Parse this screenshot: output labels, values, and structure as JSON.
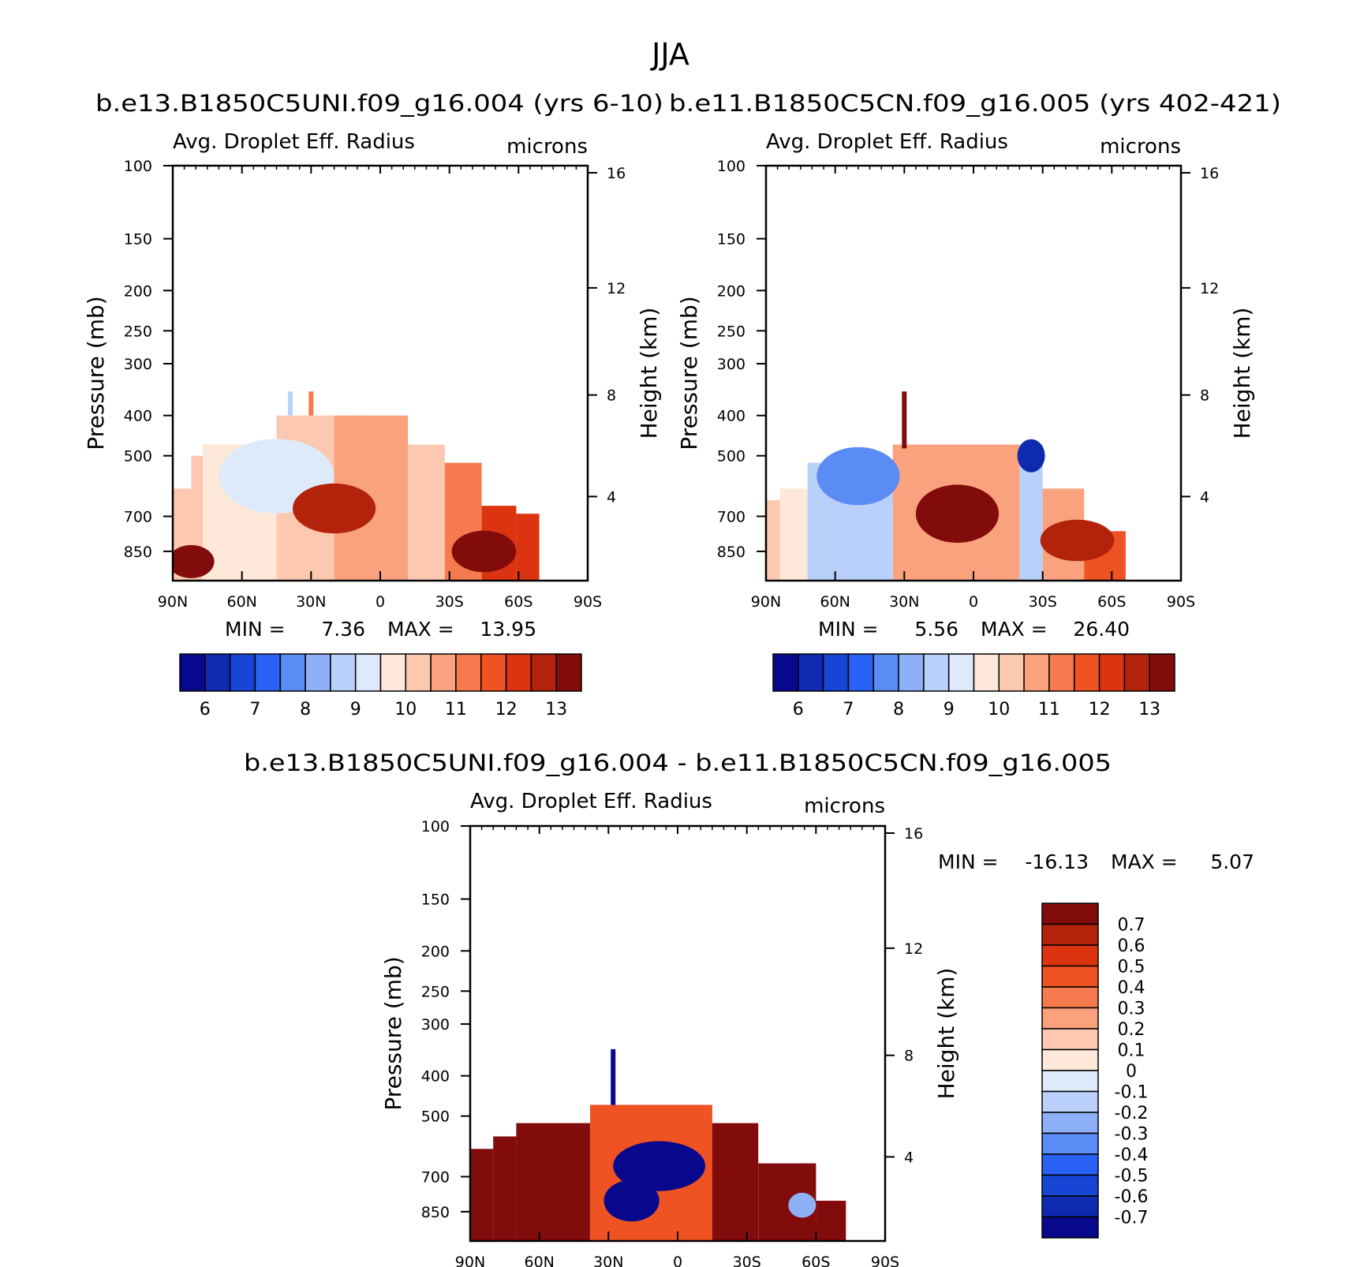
{
  "page": {
    "title": "JJA"
  },
  "panels": [
    {
      "id": "top-left",
      "case_title": "b.e13.B1850C5UNI.f09_g16.004 (yrs 6-10)",
      "left_title": "Avg. Droplet Eff. Radius",
      "right_title": "microns",
      "ylabel": "Pressure (mb)",
      "ylabel_right": "Height (km)",
      "min_label": "MIN =",
      "min_value": "7.36",
      "max_label": "MAX =",
      "max_value": "13.95"
    },
    {
      "id": "top-right",
      "case_title": "b.e11.B1850C5CN.f09_g16.005 (yrs 402-421)",
      "left_title": "Avg. Droplet Eff. Radius",
      "right_title": "microns",
      "ylabel": "Pressure (mb)",
      "ylabel_right": "Height (km)",
      "min_label": "MIN =",
      "min_value": "5.56",
      "max_label": "MAX =",
      "max_value": "26.40"
    },
    {
      "id": "bottom-diff",
      "case_title": "b.e13.B1850C5UNI.f09_g16.004 - b.e11.B1850C5CN.f09_g16.005",
      "left_title": "Avg. Droplet Eff. Radius",
      "right_title": "microns",
      "ylabel": "Pressure (mb)",
      "ylabel_right": "Height (km)",
      "min_label": "MIN =",
      "min_value": "-16.13",
      "max_label": "MAX =",
      "max_value": "5.07"
    }
  ],
  "chart_data": {
    "type": "heatmap",
    "title": "JJA",
    "x": {
      "ticks": [
        90,
        60,
        30,
        0,
        -30,
        -60,
        -90
      ],
      "tick_labels": [
        "90N",
        "60N",
        "30N",
        "0",
        "30S",
        "60S",
        "90S"
      ],
      "range": [
        90,
        -90
      ]
    },
    "y": {
      "label": "Pressure (mb)",
      "scale": "log",
      "range": [
        1000,
        100
      ],
      "ticks": [
        100,
        150,
        200,
        250,
        300,
        400,
        500,
        700,
        850
      ],
      "tick_labels": [
        "100",
        "150",
        "200",
        "250",
        "300",
        "400",
        "500",
        "700",
        "850"
      ]
    },
    "y_right": {
      "label": "Height (km)",
      "ticks": [
        16,
        12,
        8,
        4
      ],
      "tick_labels": [
        "16",
        "12",
        "8",
        "4"
      ],
      "tick_pressure_mb": [
        104,
        197,
        357,
        627
      ]
    },
    "colorbar_top": {
      "colors": [
        "#08088c",
        "#0d2ab0",
        "#1745d6",
        "#2a62f5",
        "#5b8cf6",
        "#8eb0f7",
        "#b9d0fa",
        "#ddeafb",
        "#fde8da",
        "#fcc9b0",
        "#f9a27d",
        "#f57a4e",
        "#ef5223",
        "#dc3410",
        "#b3220b",
        "#820b0b"
      ],
      "tick_labels": [
        "6",
        "7",
        "8",
        "9",
        "10",
        "11",
        "12",
        "13"
      ],
      "tick_values": [
        6,
        7,
        8,
        9,
        10,
        11,
        12,
        13
      ],
      "levels": [
        5.75,
        6,
        6.5,
        7,
        7.5,
        8,
        8.5,
        9,
        9.5,
        10,
        10.5,
        11,
        11.5,
        12,
        12.5,
        13,
        13.5
      ]
    },
    "colorbar_diff": {
      "colors": [
        "#08088c",
        "#0d2ab0",
        "#1745d6",
        "#2a62f5",
        "#5b8cf6",
        "#8eb0f7",
        "#b9d0fa",
        "#ddeafb",
        "#fde8da",
        "#fcc9b0",
        "#f9a27d",
        "#f57a4e",
        "#ef5223",
        "#dc3410",
        "#b3220b",
        "#820b0b"
      ],
      "tick_labels": [
        "0.7",
        "0.6",
        "0.5",
        "0.4",
        "0.3",
        "0.2",
        "0.1",
        "0",
        "-0.1",
        "-0.2",
        "-0.3",
        "-0.4",
        "-0.5",
        "-0.6",
        "-0.7"
      ],
      "tick_values": [
        0.7,
        0.6,
        0.5,
        0.4,
        0.3,
        0.2,
        0.1,
        0,
        -0.1,
        -0.2,
        -0.3,
        -0.4,
        -0.5,
        -0.6,
        -0.7
      ]
    },
    "fields": [
      {
        "panel": "top-left",
        "features": [
          {
            "type": "background",
            "lat": [
              90,
              82
            ],
            "p": [
              600,
              1000
            ],
            "value": 10.2
          },
          {
            "type": "background",
            "lat": [
              82,
              77
            ],
            "p": [
              500,
              1000
            ],
            "value": 10.0
          },
          {
            "type": "background",
            "lat": [
              77,
              35
            ],
            "p": [
              470,
              1000
            ],
            "value": 9.8
          },
          {
            "type": "background",
            "lat": [
              45,
              10
            ],
            "p": [
              400,
              1000
            ],
            "value": 10.0
          },
          {
            "type": "background",
            "lat": [
              20,
              -12
            ],
            "p": [
              400,
              1000
            ],
            "value": 10.6
          },
          {
            "type": "background",
            "lat": [
              -12,
              -28
            ],
            "p": [
              470,
              1000
            ],
            "value": 10.4
          },
          {
            "type": "background",
            "lat": [
              -28,
              -44
            ],
            "p": [
              520,
              1000
            ],
            "value": 11.2
          },
          {
            "type": "background",
            "lat": [
              -44,
              -59
            ],
            "p": [
              660,
              1000
            ],
            "value": 12.0
          },
          {
            "type": "background",
            "lat": [
              -59,
              -69
            ],
            "p": [
              690,
              1000
            ],
            "value": 12.4
          },
          {
            "type": "blob",
            "lat": 45,
            "p": 560,
            "dlat": 25,
            "dlogp": 0.09,
            "value": 9.2
          },
          {
            "type": "blob",
            "lat": 20,
            "p": 670,
            "dlat": 18,
            "dlogp": 0.06,
            "value": 12.8
          },
          {
            "type": "blob",
            "lat": -45,
            "p": 850,
            "dlat": 14,
            "dlogp": 0.05,
            "value": 13.4
          },
          {
            "type": "blob",
            "lat": 82,
            "p": 900,
            "dlat": 10,
            "dlogp": 0.04,
            "value": 13.2
          },
          {
            "type": "spike",
            "lat": 39,
            "p": [
              350,
              400
            ],
            "value": 8.8
          },
          {
            "type": "spike",
            "lat": 30,
            "p": [
              350,
              400
            ],
            "value": 11.0
          }
        ]
      },
      {
        "panel": "top-right",
        "features": [
          {
            "type": "background",
            "lat": [
              90,
              84
            ],
            "p": [
              640,
              1000
            ],
            "value": 10.2
          },
          {
            "type": "background",
            "lat": [
              84,
              72
            ],
            "p": [
              600,
              1000
            ],
            "value": 9.6
          },
          {
            "type": "background",
            "lat": [
              72,
              35
            ],
            "p": [
              520,
              1000
            ],
            "value": 8.8
          },
          {
            "type": "background",
            "lat": [
              35,
              -20
            ],
            "p": [
              470,
              1000
            ],
            "value": 10.6
          },
          {
            "type": "background",
            "lat": [
              -20,
              -30
            ],
            "p": [
              470,
              1000
            ],
            "value": 8.6
          },
          {
            "type": "background",
            "lat": [
              -30,
              -48
            ],
            "p": [
              600,
              1000
            ],
            "value": 10.8
          },
          {
            "type": "background",
            "lat": [
              -48,
              -66
            ],
            "p": [
              760,
              1000
            ],
            "value": 11.8
          },
          {
            "type": "blob",
            "lat": 7,
            "p": 690,
            "dlat": 18,
            "dlogp": 0.07,
            "value": 14.0
          },
          {
            "type": "blob",
            "lat": -45,
            "p": 800,
            "dlat": 16,
            "dlogp": 0.05,
            "value": 12.6
          },
          {
            "type": "blob",
            "lat": 50,
            "p": 560,
            "dlat": 18,
            "dlogp": 0.07,
            "value": 7.8
          },
          {
            "type": "blob",
            "lat": -25,
            "p": 500,
            "dlat": 6,
            "dlogp": 0.04,
            "value": 6.4
          },
          {
            "type": "spike",
            "lat": 30,
            "p": [
              350,
              480
            ],
            "value": 13.8
          }
        ]
      },
      {
        "panel": "bottom-diff",
        "features": [
          {
            "type": "background",
            "lat": [
              90,
              80
            ],
            "p": [
              600,
              1000
            ],
            "value": 0.8
          },
          {
            "type": "background",
            "lat": [
              80,
              70
            ],
            "p": [
              560,
              1000
            ],
            "value": 0.8
          },
          {
            "type": "background",
            "lat": [
              70,
              38
            ],
            "p": [
              520,
              1000
            ],
            "value": 0.8
          },
          {
            "type": "background",
            "lat": [
              38,
              -15
            ],
            "p": [
              470,
              1000
            ],
            "value": 0.4
          },
          {
            "type": "background",
            "lat": [
              -15,
              -35
            ],
            "p": [
              520,
              1000
            ],
            "value": 0.8
          },
          {
            "type": "background",
            "lat": [
              -35,
              -60
            ],
            "p": [
              650,
              1000
            ],
            "value": 0.8
          },
          {
            "type": "background",
            "lat": [
              -60,
              -73
            ],
            "p": [
              800,
              1000
            ],
            "value": 0.8
          },
          {
            "type": "blob",
            "lat": 8,
            "p": 660,
            "dlat": 20,
            "dlogp": 0.06,
            "value": -1.2
          },
          {
            "type": "blob",
            "lat": 20,
            "p": 800,
            "dlat": 12,
            "dlogp": 0.05,
            "value": -0.9
          },
          {
            "type": "blob",
            "lat": -54,
            "p": 820,
            "dlat": 6,
            "dlogp": 0.03,
            "value": -0.3
          },
          {
            "type": "spike",
            "lat": 28,
            "p": [
              345,
              470
            ],
            "value": -1.2
          }
        ]
      }
    ]
  }
}
